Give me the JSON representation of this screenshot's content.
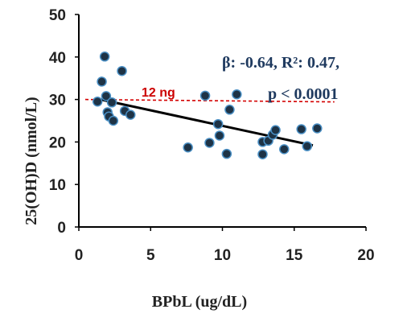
{
  "chart_data": {
    "type": "scatter",
    "xlabel": "BPbL (ug/dL)",
    "ylabel": "25(OH)D  (nmol/L)",
    "xlim": [
      0,
      20
    ],
    "ylim": [
      0,
      50
    ],
    "xticks": [
      "0",
      "5",
      "10",
      "15",
      "20"
    ],
    "yticks": [
      "0",
      "10",
      "20",
      "30",
      "40",
      "50"
    ],
    "grid": false,
    "legend": "none",
    "points": [
      {
        "x": 1.3,
        "y": 29.5
      },
      {
        "x": 1.6,
        "y": 34.2
      },
      {
        "x": 1.8,
        "y": 40.1
      },
      {
        "x": 1.9,
        "y": 30.8
      },
      {
        "x": 2.0,
        "y": 27.0
      },
      {
        "x": 2.1,
        "y": 26.0
      },
      {
        "x": 2.3,
        "y": 29.3
      },
      {
        "x": 2.4,
        "y": 25.0
      },
      {
        "x": 3.0,
        "y": 36.7
      },
      {
        "x": 3.2,
        "y": 27.3
      },
      {
        "x": 3.6,
        "y": 26.4
      },
      {
        "x": 7.6,
        "y": 18.7
      },
      {
        "x": 8.8,
        "y": 30.9
      },
      {
        "x": 9.1,
        "y": 19.8
      },
      {
        "x": 9.7,
        "y": 24.2
      },
      {
        "x": 9.8,
        "y": 21.5
      },
      {
        "x": 10.3,
        "y": 17.2
      },
      {
        "x": 10.5,
        "y": 27.6
      },
      {
        "x": 11.0,
        "y": 31.2
      },
      {
        "x": 12.8,
        "y": 20.0
      },
      {
        "x": 12.8,
        "y": 17.1
      },
      {
        "x": 13.2,
        "y": 20.3
      },
      {
        "x": 13.5,
        "y": 21.7
      },
      {
        "x": 13.7,
        "y": 22.8
      },
      {
        "x": 14.3,
        "y": 18.3
      },
      {
        "x": 15.5,
        "y": 23.0
      },
      {
        "x": 15.9,
        "y": 19.0
      },
      {
        "x": 16.6,
        "y": 23.2
      }
    ],
    "regression_line": {
      "x": [
        1.5,
        16.3
      ],
      "y": [
        30.0,
        19.2
      ]
    },
    "reference_line": {
      "y": 30,
      "x": [
        0,
        17.8
      ],
      "label": "12 ng",
      "color": "#d40000"
    },
    "annotations": {
      "stats_line1": "β: -0.64, R²: 0.47,",
      "stats_line2": "p < 0.0001"
    },
    "colors": {
      "points": "#1e3346",
      "point_edge": "#4a8fc4",
      "regression": "#000000",
      "axis": "#000000"
    }
  }
}
